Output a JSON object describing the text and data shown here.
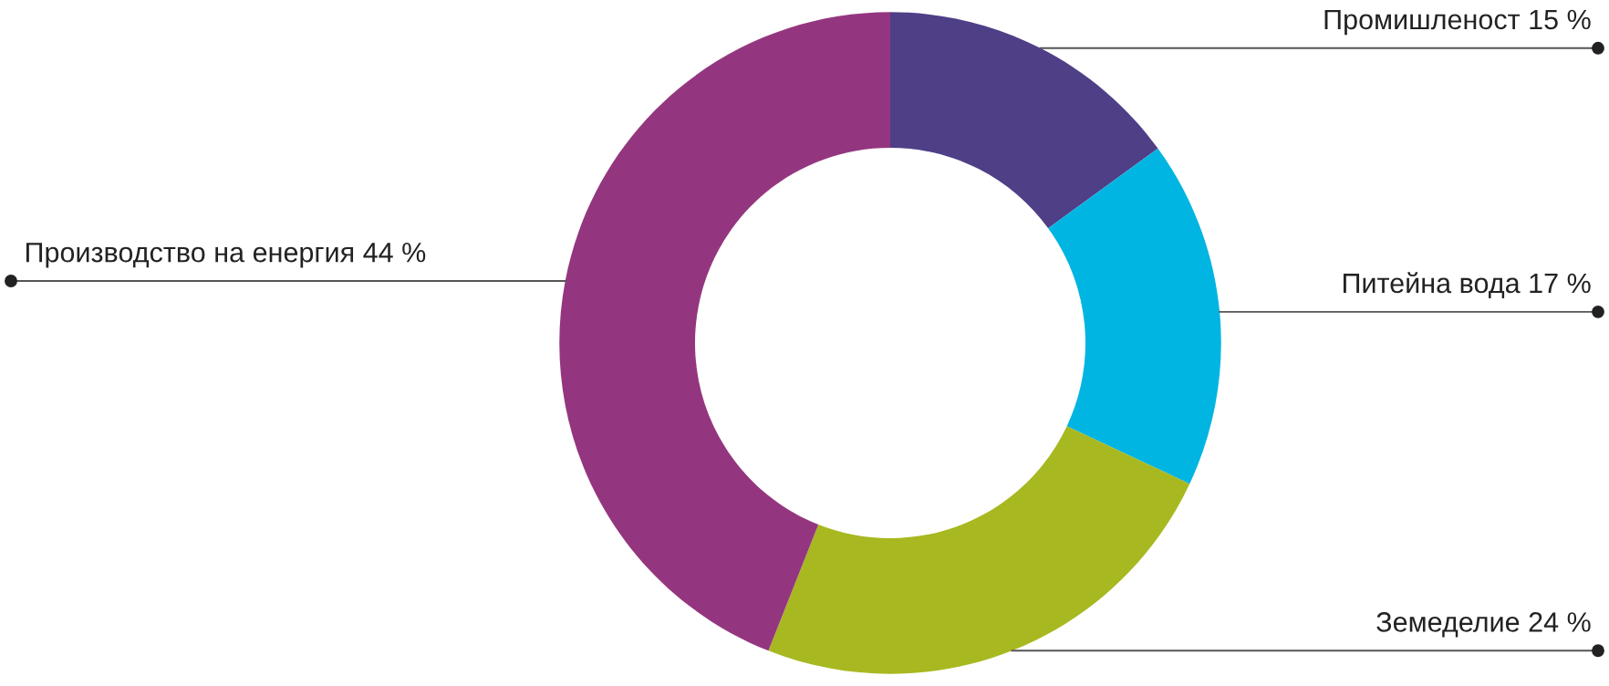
{
  "chart_data": {
    "type": "donut",
    "categories": [
      "Промишленост",
      "Питейна вода",
      "Земеделие",
      "Производство на енергия"
    ],
    "values": [
      15,
      17,
      24,
      44
    ],
    "value_labels": [
      "15 %",
      "17 %",
      "24 %",
      "44 %"
    ],
    "colors": [
      "#4f3f87",
      "#00b5e2",
      "#a8b820",
      "#94367f"
    ],
    "legend": false
  }
}
